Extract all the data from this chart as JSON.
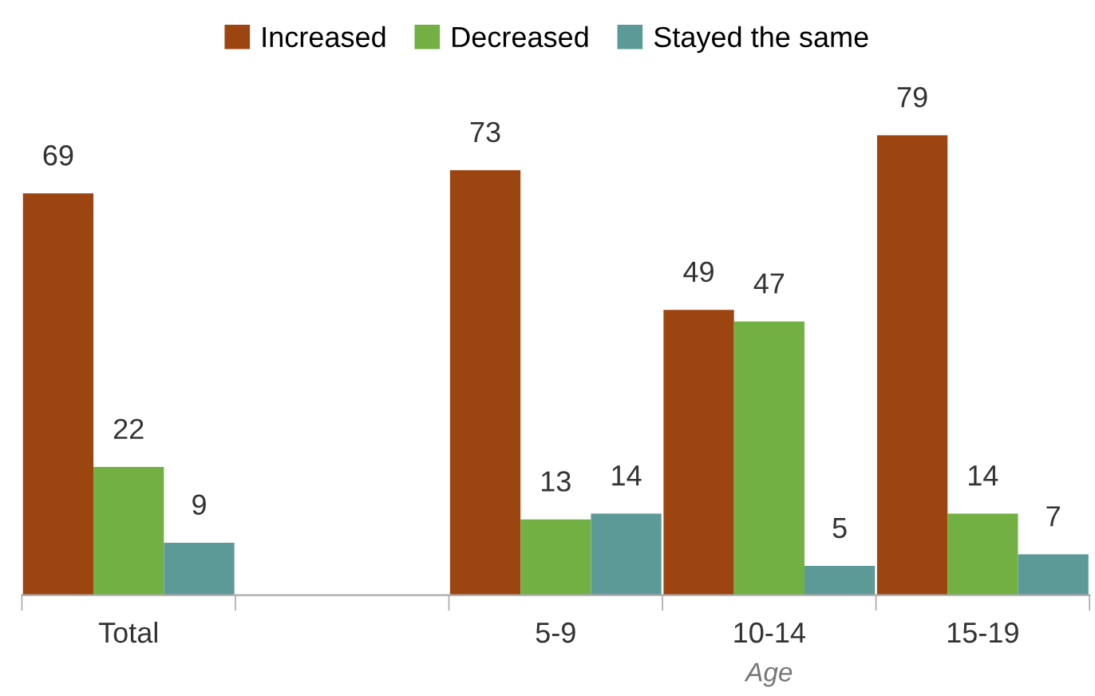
{
  "chart_data": {
    "type": "bar",
    "categories": [
      "Total",
      null,
      "5-9",
      "10-14",
      "15-19"
    ],
    "xlabel": "Age",
    "series": [
      {
        "name": "Increased",
        "color": "#9c4510",
        "values": [
          69,
          null,
          73,
          49,
          79
        ]
      },
      {
        "name": "Decreased",
        "color": "#72b043",
        "values": [
          22,
          null,
          13,
          47,
          14
        ]
      },
      {
        "name": "Stayed the same",
        "color": "#5b9a96",
        "values": [
          9,
          null,
          14,
          5,
          7
        ]
      }
    ],
    "data_labels": true,
    "legend": "top",
    "grid": false,
    "tick_labels": "x"
  }
}
